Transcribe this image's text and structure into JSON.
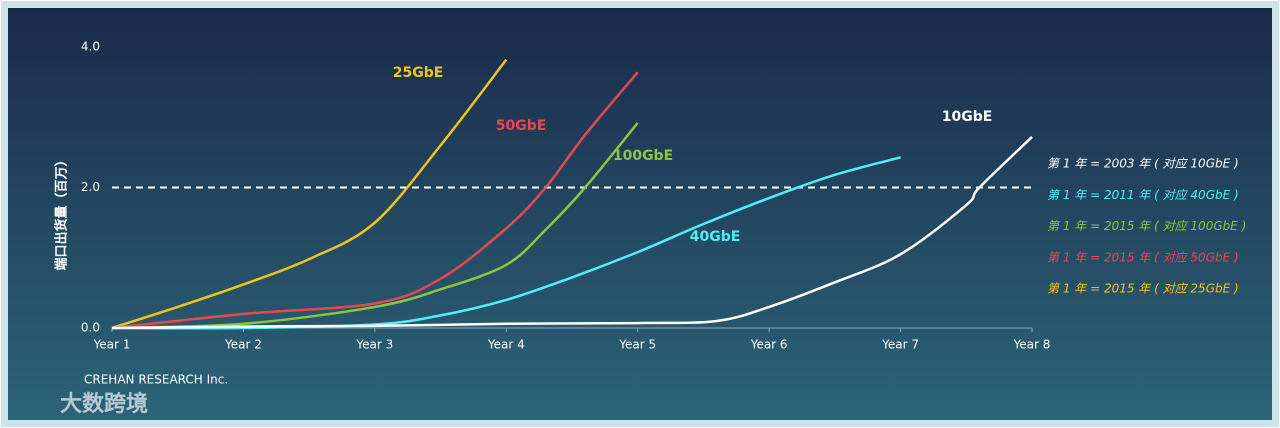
{
  "chart_data": {
    "type": "line",
    "y_label": "端口出货量（百万）",
    "source": "CREHAN RESEARCH Inc.",
    "xlim": [
      1,
      8
    ],
    "xticks": [
      {
        "value": 1,
        "label": "Year 1"
      },
      {
        "value": 2,
        "label": "Year 2"
      },
      {
        "value": 3,
        "label": "Year 3"
      },
      {
        "value": 4,
        "label": "Year 4"
      },
      {
        "value": 5,
        "label": "Year 5"
      },
      {
        "value": 6,
        "label": "Year 6"
      },
      {
        "value": 7,
        "label": "Year 7"
      },
      {
        "value": 8,
        "label": "Year 8"
      }
    ],
    "ylim": [
      0,
      4
    ],
    "yticks": [
      {
        "value": 0,
        "label": "0.0"
      },
      {
        "value": 2,
        "label": "2.0"
      },
      {
        "value": 4,
        "label": "4.0"
      }
    ],
    "reference_line": 2,
    "series": [
      {
        "name": "25GbE",
        "color": "#f0c419",
        "x": [
          1,
          1.5,
          2,
          2.5,
          3,
          3.5,
          4
        ],
        "values": [
          0,
          0.3,
          0.62,
          0.98,
          1.5,
          2.6,
          3.82
        ]
      },
      {
        "name": "50GbE",
        "color": "#e8474f",
        "x": [
          1,
          2,
          3,
          3.5,
          4,
          4.3,
          4.6,
          5
        ],
        "values": [
          0,
          0.2,
          0.35,
          0.7,
          1.42,
          2.0,
          2.75,
          3.64
        ]
      },
      {
        "name": "100GbE",
        "color": "#8cc63f",
        "x": [
          1,
          2,
          3,
          3.5,
          4,
          4.3,
          4.6,
          5
        ],
        "values": [
          0,
          0.06,
          0.3,
          0.55,
          0.9,
          1.4,
          2.0,
          2.92
        ]
      },
      {
        "name": "40GbE",
        "color": "#4ff0f5",
        "x": [
          1,
          2,
          3,
          3.5,
          4,
          4.5,
          5,
          5.5,
          6,
          6.5,
          7
        ],
        "values": [
          0,
          0,
          0.05,
          0.18,
          0.4,
          0.72,
          1.08,
          1.48,
          1.85,
          2.18,
          2.43
        ]
      },
      {
        "name": "10GbE",
        "color": "#ffffff",
        "x": [
          1,
          2,
          3,
          4,
          5,
          5.6,
          6,
          6.5,
          7,
          7.5,
          7.6,
          8
        ],
        "values": [
          0,
          0.02,
          0.03,
          0.06,
          0.07,
          0.1,
          0.3,
          0.65,
          1.05,
          1.75,
          2.0,
          2.72
        ]
      }
    ],
    "notes": [
      {
        "text": "第 1 年 = 2003 年 ( 对应 10GbE )",
        "color": "#ffffff"
      },
      {
        "text": "第 1 年 = 2011 年 ( 对应 40GbE )",
        "color": "#4ff0f5"
      },
      {
        "text": "第 1 年 = 2015 年 ( 对应 100GbE )",
        "color": "#8cc63f"
      },
      {
        "text": "第 1 年 = 2015 年 ( 对应 50GbE )",
        "color": "#e8474f"
      },
      {
        "text": "第 1 年 = 2015 年 ( 对应 25GbE )",
        "color": "#f0c419"
      }
    ]
  },
  "watermark": "大数跨境"
}
